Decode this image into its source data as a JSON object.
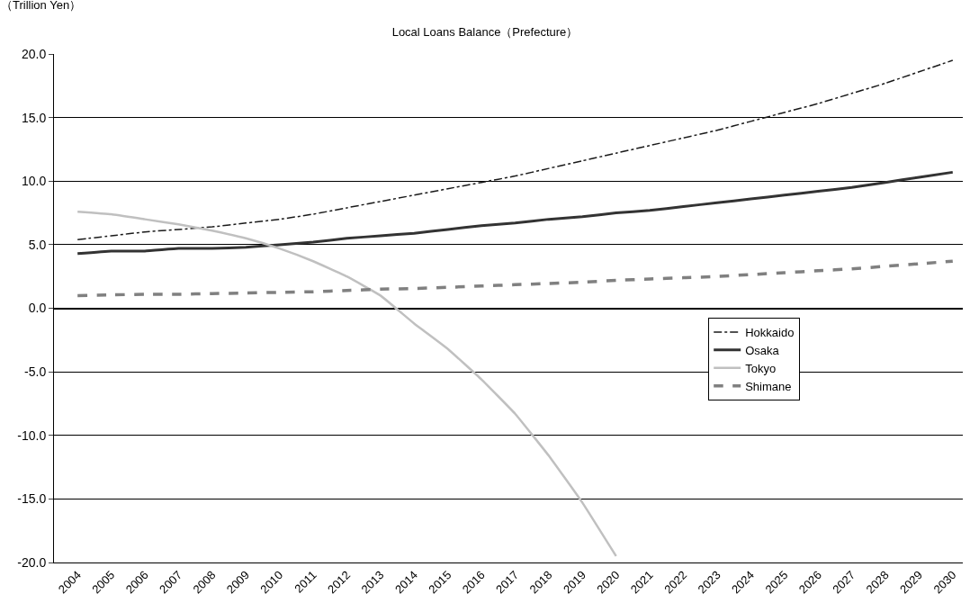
{
  "chart_data": {
    "type": "line",
    "title": "Local Loans Balance（Prefecture）",
    "ylabel": "（Trillion Yen）",
    "categories": [
      "2004",
      "2005",
      "2006",
      "2007",
      "2008",
      "2009",
      "2010",
      "2011",
      "2012",
      "2013",
      "2014",
      "2015",
      "2016",
      "2017",
      "2018",
      "2019",
      "2020",
      "2021",
      "2022",
      "2023",
      "2024",
      "2025",
      "2026",
      "2027",
      "2028",
      "2029",
      "2030"
    ],
    "series": [
      {
        "name": "Hokkaido",
        "color": "#1a1a1a",
        "line_style": "dashdot",
        "values": [
          5.4,
          5.7,
          6.0,
          6.2,
          6.4,
          6.7,
          7.0,
          7.4,
          7.9,
          8.4,
          8.9,
          9.4,
          9.9,
          10.4,
          11.0,
          11.6,
          12.2,
          12.8,
          13.4,
          14.0,
          14.7,
          15.4,
          16.1,
          16.9,
          17.7,
          18.6,
          19.5
        ]
      },
      {
        "name": "Osaka",
        "color": "#333333",
        "line_style": "solid",
        "values": [
          4.3,
          4.5,
          4.5,
          4.7,
          4.7,
          4.8,
          5.0,
          5.2,
          5.5,
          5.7,
          5.9,
          6.2,
          6.5,
          6.7,
          7.0,
          7.2,
          7.5,
          7.7,
          8.0,
          8.3,
          8.6,
          8.9,
          9.2,
          9.5,
          9.9,
          10.3,
          10.7
        ]
      },
      {
        "name": "Tokyo",
        "color": "#c0c0c0",
        "line_style": "solid",
        "values": [
          7.6,
          7.4,
          7.0,
          6.6,
          6.1,
          5.5,
          4.7,
          3.7,
          2.5,
          1.0,
          -1.2,
          -3.2,
          -5.6,
          -8.3,
          -11.6,
          -15.3,
          -19.5,
          null,
          null,
          null,
          null,
          null,
          null,
          null,
          null,
          null,
          null
        ]
      },
      {
        "name": "Shimane",
        "color": "#808080",
        "line_style": "dashed",
        "values": [
          1.0,
          1.05,
          1.1,
          1.1,
          1.15,
          1.2,
          1.25,
          1.3,
          1.4,
          1.5,
          1.55,
          1.65,
          1.75,
          1.85,
          1.95,
          2.05,
          2.2,
          2.3,
          2.4,
          2.5,
          2.65,
          2.8,
          2.95,
          3.1,
          3.3,
          3.5,
          3.7
        ]
      }
    ],
    "ylim": [
      -20,
      20
    ],
    "yticks": [
      {
        "value": -20,
        "label": "-20.0"
      },
      {
        "value": -15,
        "label": "-15.0"
      },
      {
        "value": -10,
        "label": "-10.0"
      },
      {
        "value": -5,
        "label": "-5.0"
      },
      {
        "value": 0,
        "label": "0.0"
      },
      {
        "value": 5,
        "label": "5.0"
      },
      {
        "value": 10,
        "label": "10.0"
      },
      {
        "value": 15,
        "label": "15.0"
      },
      {
        "value": 20,
        "label": "20.0"
      }
    ],
    "grid": "y",
    "legend": "right",
    "marker": "none"
  }
}
